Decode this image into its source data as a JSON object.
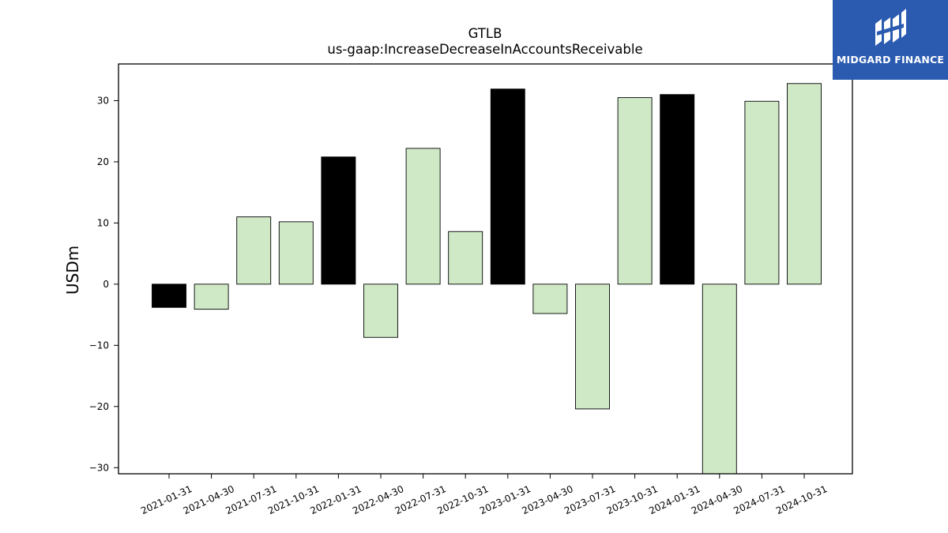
{
  "chart_data": {
    "type": "bar",
    "title": "GTLB",
    "subtitle": "us-gaap:IncreaseDecreaseInAccountsReceivable",
    "xlabel": "",
    "ylabel": "USDm",
    "ylim": [
      -31,
      36
    ],
    "yticks": [
      -30,
      -20,
      -10,
      0,
      10,
      20,
      30
    ],
    "ytick_labels": [
      "−30",
      "−20",
      "−10",
      "0",
      "10",
      "20",
      "30"
    ],
    "grid": false,
    "categories": [
      "2021-01-31",
      "2021-04-30",
      "2021-07-31",
      "2021-10-31",
      "2022-01-31",
      "2022-04-30",
      "2022-07-31",
      "2022-10-31",
      "2023-01-31",
      "2023-04-30",
      "2023-07-31",
      "2023-10-31",
      "2024-01-31",
      "2024-04-30",
      "2024-07-31",
      "2024-10-31"
    ],
    "values": [
      -3.8,
      -4.1,
      11.0,
      10.2,
      20.8,
      -8.7,
      22.2,
      8.6,
      31.9,
      -4.8,
      -20.4,
      30.5,
      31.0,
      -31.0,
      29.9,
      32.8
    ],
    "bar_colors": [
      "#000000",
      "#cfe9c7",
      "#cfe9c7",
      "#cfe9c7",
      "#000000",
      "#cfe9c7",
      "#cfe9c7",
      "#cfe9c7",
      "#000000",
      "#cfe9c7",
      "#cfe9c7",
      "#cfe9c7",
      "#000000",
      "#cfe9c7",
      "#cfe9c7",
      "#cfe9c7"
    ]
  },
  "logo": {
    "text": "MIDGARD FINANCE",
    "background": "#2b5bb0",
    "icon": "midgard-logo-icon"
  }
}
